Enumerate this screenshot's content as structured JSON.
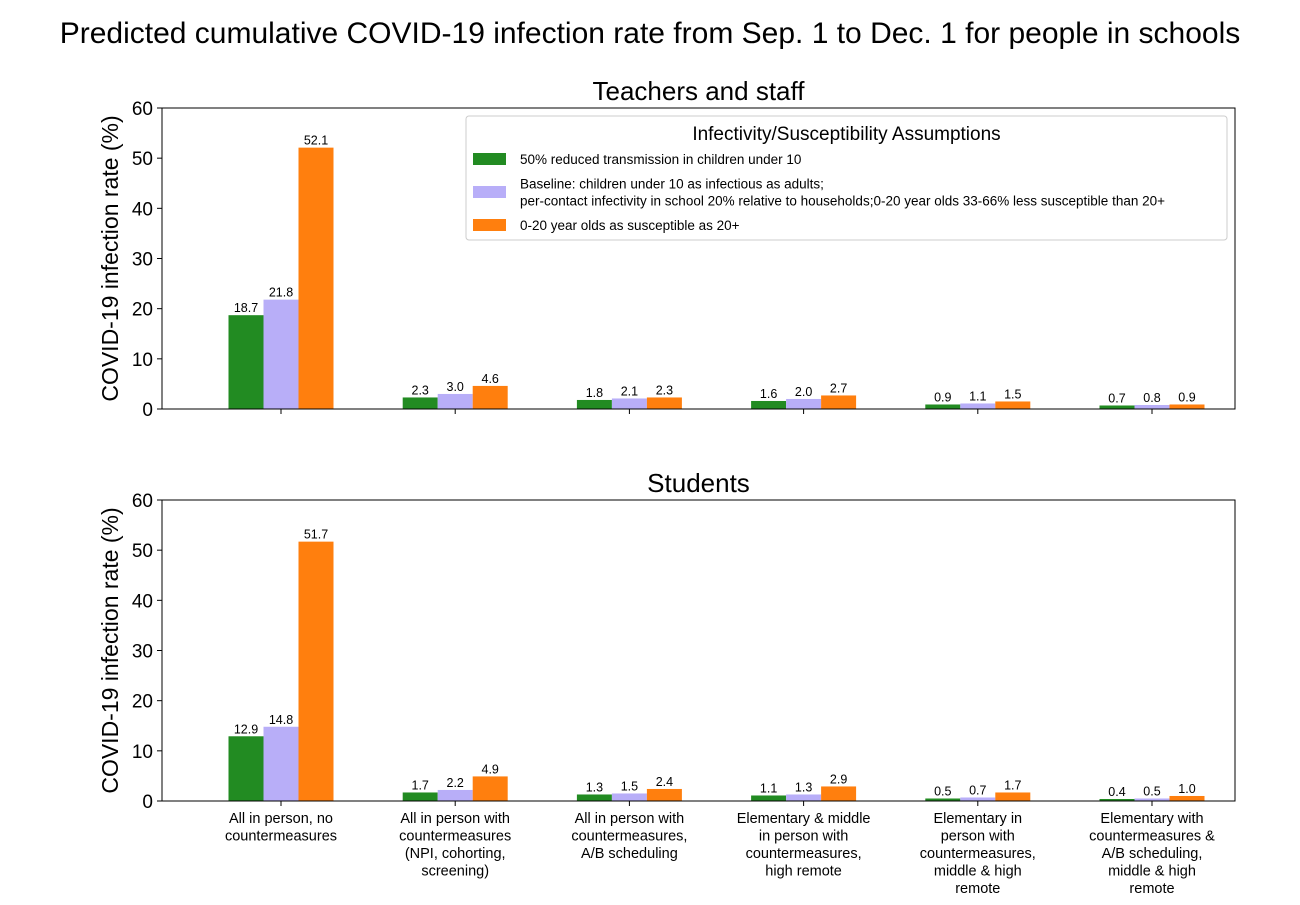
{
  "suptitle": "Predicted cumulative COVID-19 infection rate from Sep. 1 to Dec. 1 for people in schools",
  "chart_data": [
    {
      "type": "bar",
      "title": "Teachers and staff",
      "ylabel": "COVID-19 infection rate (%)",
      "ylim": [
        0,
        60
      ],
      "yticks": [
        "0",
        "10",
        "20",
        "30",
        "40",
        "50",
        "60"
      ],
      "show_xticklabels": false,
      "categories": [
        [
          "All in person, no",
          "countermeasures"
        ],
        [
          "All in person with",
          "countermeasures",
          "(NPI, cohorting,",
          "screening)"
        ],
        [
          "All in person with",
          "countermeasures,",
          "A/B scheduling"
        ],
        [
          "Elementary & middle",
          "in person with",
          "countermeasures,",
          "high remote"
        ],
        [
          "Elementary in",
          "person with",
          "countermeasures,",
          "middle & high",
          "remote"
        ],
        [
          "Elementary with",
          "countermeasures &",
          "A/B scheduling,",
          "middle & high",
          "remote"
        ]
      ],
      "series": [
        {
          "name": "50% reduced transmission in children under 10",
          "color": "#228b22",
          "values": [
            18.7,
            2.3,
            1.8,
            1.6,
            0.9,
            0.7
          ],
          "labels": [
            "18.7",
            "2.3",
            "1.8",
            "1.6",
            "0.9",
            "0.7"
          ]
        },
        {
          "name": "Baseline: children under 10 as infectious as adults;\nper-contact infectivity in school 20% relative to households;0-20 year olds 33-66% less susceptible than 20+",
          "color": "#b8aef8",
          "values": [
            21.8,
            3.0,
            2.1,
            2.0,
            1.1,
            0.8
          ],
          "labels": [
            "21.8",
            "3.0",
            "2.1",
            "2.0",
            "1.1",
            "0.8"
          ]
        },
        {
          "name": "0-20 year olds as susceptible as 20+",
          "color": "#ff7f0e",
          "values": [
            52.1,
            4.6,
            2.3,
            2.7,
            1.5,
            0.9
          ],
          "labels": [
            "52.1",
            "4.6",
            "2.3",
            "2.7",
            "1.5",
            "0.9"
          ]
        }
      ],
      "legend": {
        "title": "Infectivity/Susceptibility Assumptions",
        "placement": "upper-right",
        "entries": [
          {
            "color": "#228b22",
            "lines": [
              "50% reduced transmission in children under 10"
            ]
          },
          {
            "color": "#b8aef8",
            "lines": [
              "Baseline: children under 10 as infectious as adults;",
              "per-contact infectivity in school 20% relative to households;0-20 year olds 33-66% less susceptible than 20+"
            ]
          },
          {
            "color": "#ff7f0e",
            "lines": [
              "0-20 year olds as susceptible as 20+"
            ]
          }
        ]
      },
      "grid": false
    },
    {
      "type": "bar",
      "title": "Students",
      "ylabel": "COVID-19 infection rate (%)",
      "ylim": [
        0,
        60
      ],
      "yticks": [
        "0",
        "10",
        "20",
        "30",
        "40",
        "50",
        "60"
      ],
      "show_xticklabels": true,
      "categories": [
        [
          "All in person, no",
          "countermeasures"
        ],
        [
          "All in person with",
          "countermeasures",
          "(NPI, cohorting,",
          "screening)"
        ],
        [
          "All in person with",
          "countermeasures,",
          "A/B scheduling"
        ],
        [
          "Elementary & middle",
          "in person with",
          "countermeasures,",
          "high remote"
        ],
        [
          "Elementary in",
          "person with",
          "countermeasures,",
          "middle & high",
          "remote"
        ],
        [
          "Elementary with",
          "countermeasures &",
          "A/B scheduling,",
          "middle & high",
          "remote"
        ]
      ],
      "series": [
        {
          "name": "50% reduced transmission in children under 10",
          "color": "#228b22",
          "values": [
            12.9,
            1.7,
            1.3,
            1.1,
            0.5,
            0.4
          ],
          "labels": [
            "12.9",
            "1.7",
            "1.3",
            "1.1",
            "0.5",
            "0.4"
          ]
        },
        {
          "name": "Baseline: children under 10 as infectious as adults;\nper-contact infectivity in school 20% relative to households;0-20 year olds 33-66% less susceptible than 20+",
          "color": "#b8aef8",
          "values": [
            14.8,
            2.2,
            1.5,
            1.3,
            0.7,
            0.5
          ],
          "labels": [
            "14.8",
            "2.2",
            "1.5",
            "1.3",
            "0.7",
            "0.5"
          ]
        },
        {
          "name": "0-20 year olds as susceptible as 20+",
          "color": "#ff7f0e",
          "values": [
            51.7,
            4.9,
            2.4,
            2.9,
            1.7,
            1.0
          ],
          "labels": [
            "51.7",
            "4.9",
            "2.4",
            "2.9",
            "1.7",
            "1.0"
          ]
        }
      ],
      "grid": false
    }
  ]
}
